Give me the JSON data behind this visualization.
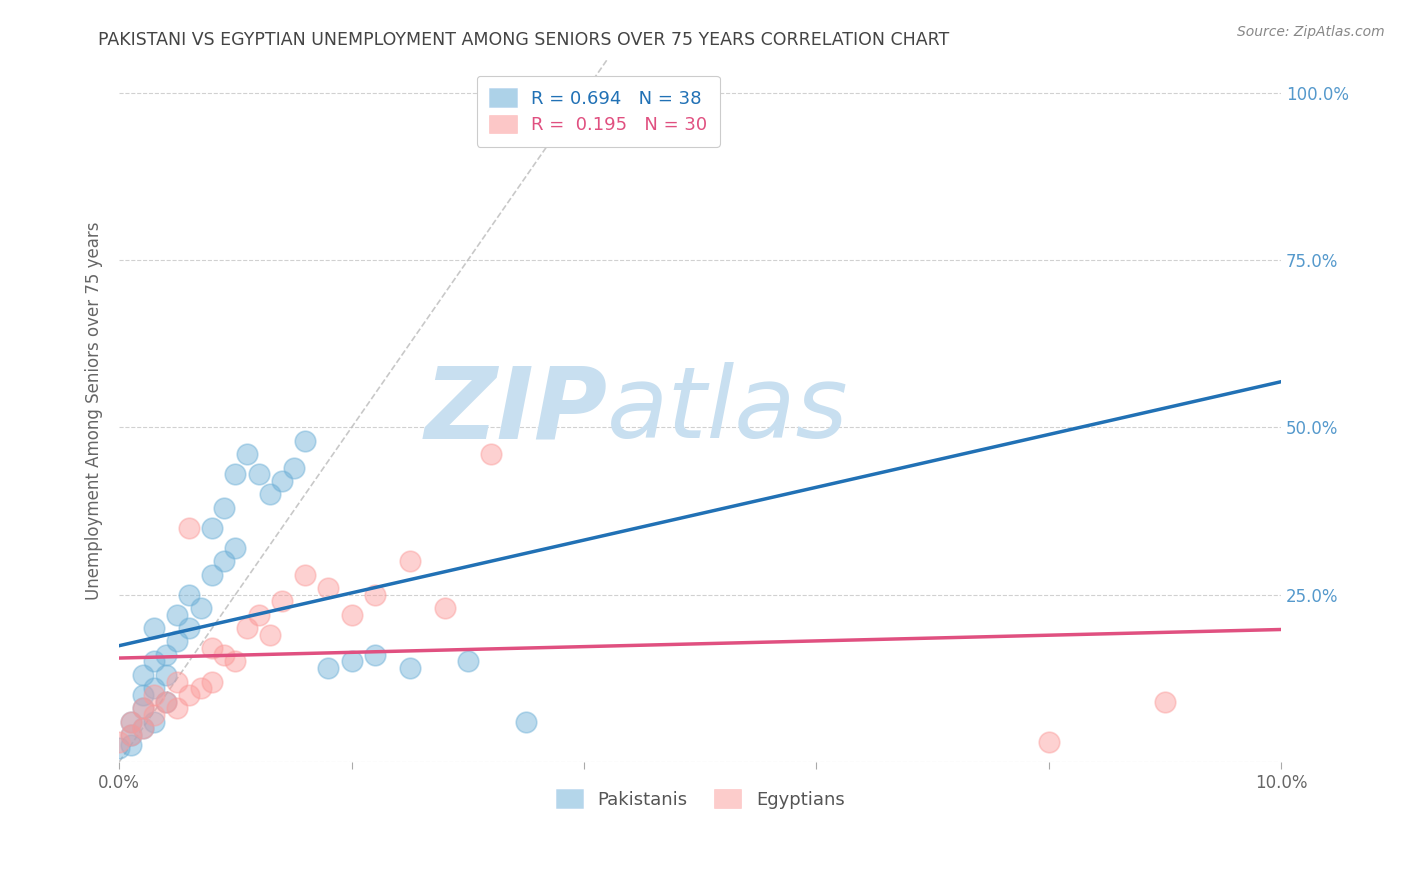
{
  "title": "PAKISTANI VS EGYPTIAN UNEMPLOYMENT AMONG SENIORS OVER 75 YEARS CORRELATION CHART",
  "source": "Source: ZipAtlas.com",
  "ylabel": "Unemployment Among Seniors over 75 years",
  "xlim": [
    0.0,
    0.1
  ],
  "ylim": [
    0.0,
    1.05
  ],
  "pakistani_color": "#6baed6",
  "pakistani_line_color": "#2171b5",
  "egyptian_color": "#fb9a99",
  "egyptian_line_color": "#e05080",
  "diagonal_color": "#bbbbbb",
  "background_color": "#ffffff",
  "grid_color": "#cccccc",
  "title_color": "#444444",
  "right_axis_color": "#5599cc",
  "watermark_zip": "ZIP",
  "watermark_atlas": "atlas",
  "watermark_zip_color": "#c8dff0",
  "watermark_atlas_color": "#c8dff0",
  "pak_R": "0.694",
  "pak_N": "38",
  "egy_R": "0.195",
  "egy_N": "30",
  "pakistani_x": [
    0.0,
    0.001,
    0.001,
    0.001,
    0.002,
    0.002,
    0.002,
    0.002,
    0.003,
    0.003,
    0.003,
    0.003,
    0.004,
    0.004,
    0.004,
    0.005,
    0.005,
    0.006,
    0.006,
    0.007,
    0.008,
    0.008,
    0.009,
    0.009,
    0.01,
    0.01,
    0.011,
    0.012,
    0.013,
    0.014,
    0.015,
    0.016,
    0.018,
    0.02,
    0.022,
    0.025,
    0.03,
    0.035
  ],
  "pakistani_y": [
    0.02,
    0.025,
    0.04,
    0.06,
    0.05,
    0.08,
    0.1,
    0.13,
    0.06,
    0.11,
    0.15,
    0.2,
    0.09,
    0.13,
    0.16,
    0.18,
    0.22,
    0.2,
    0.25,
    0.23,
    0.28,
    0.35,
    0.3,
    0.38,
    0.32,
    0.43,
    0.46,
    0.43,
    0.4,
    0.42,
    0.44,
    0.48,
    0.14,
    0.15,
    0.16,
    0.14,
    0.15,
    0.06
  ],
  "egyptian_x": [
    0.0,
    0.001,
    0.001,
    0.002,
    0.002,
    0.003,
    0.003,
    0.004,
    0.005,
    0.005,
    0.006,
    0.006,
    0.007,
    0.008,
    0.008,
    0.009,
    0.01,
    0.011,
    0.012,
    0.013,
    0.014,
    0.016,
    0.018,
    0.02,
    0.022,
    0.025,
    0.028,
    0.032,
    0.08,
    0.09
  ],
  "egyptian_y": [
    0.03,
    0.04,
    0.06,
    0.05,
    0.08,
    0.07,
    0.1,
    0.09,
    0.08,
    0.12,
    0.35,
    0.1,
    0.11,
    0.12,
    0.17,
    0.16,
    0.15,
    0.2,
    0.22,
    0.19,
    0.24,
    0.28,
    0.26,
    0.22,
    0.25,
    0.3,
    0.23,
    0.46,
    0.03,
    0.09
  ]
}
